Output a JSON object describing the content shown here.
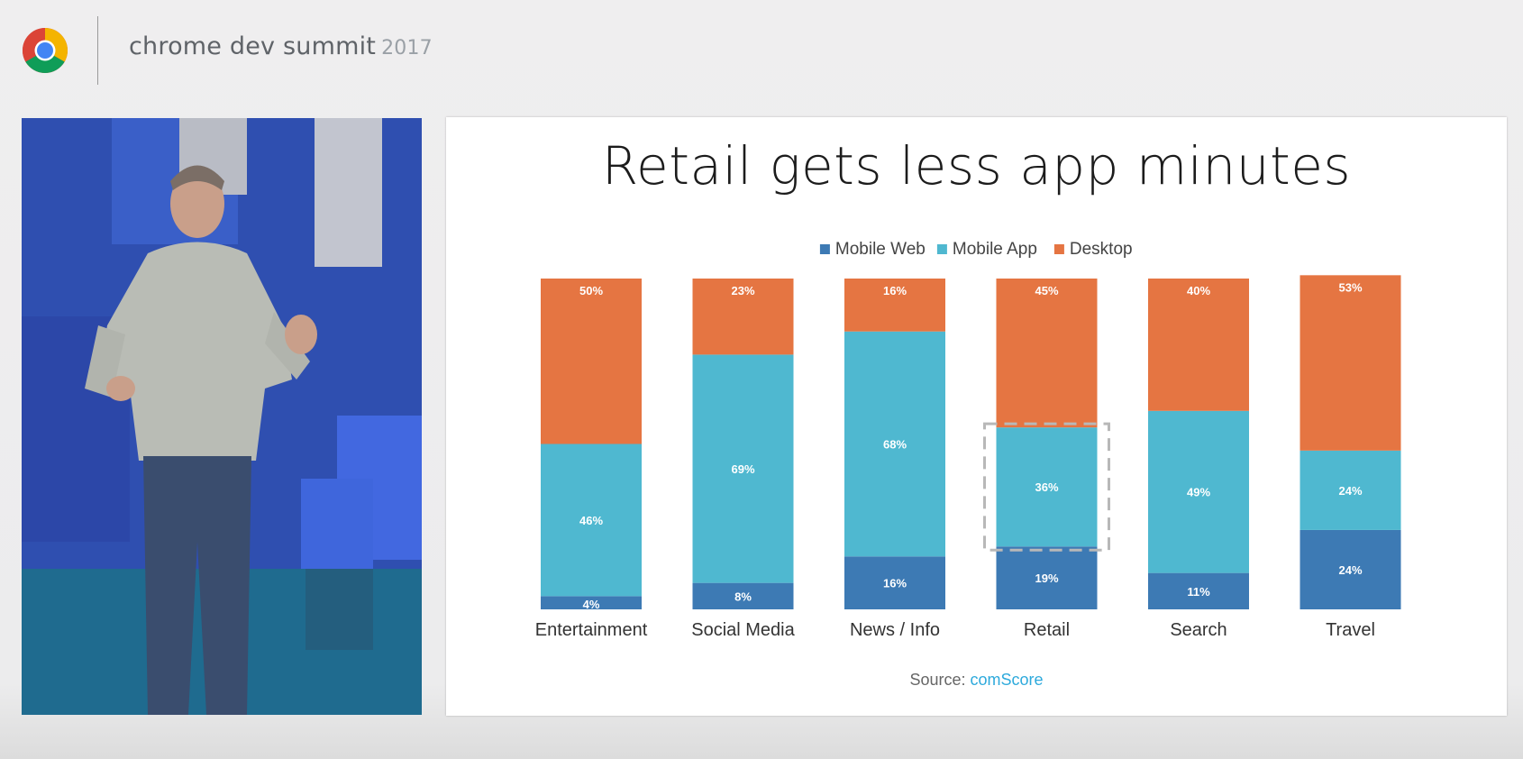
{
  "header": {
    "title": "chrome dev summit",
    "year": "2017",
    "logo_icon": "chrome-logo-icon"
  },
  "video": {
    "description_icon": "speaker-video-icon"
  },
  "slide": {
    "title": "Retail gets less app minutes",
    "source_label": "Source:",
    "source_link": "comScore"
  },
  "colors": {
    "mobile_web": "#3d7ab4",
    "mobile_app": "#4fb8d0",
    "desktop": "#e57542",
    "highlight_box": "#b8b8b8"
  },
  "chart_data": {
    "type": "bar",
    "stacked": true,
    "categories": [
      "Entertainment",
      "Social Media",
      "News / Info",
      "Retail",
      "Search",
      "Travel"
    ],
    "series": [
      {
        "name": "Mobile Web",
        "values": [
          4,
          8,
          16,
          19,
          11,
          24
        ],
        "labels": [
          "4%",
          "8%",
          "16%",
          "19%",
          "11%",
          "24%"
        ]
      },
      {
        "name": "Mobile App",
        "values": [
          46,
          69,
          68,
          36,
          49,
          24
        ],
        "labels": [
          "46%",
          "69%",
          "68%",
          "36%",
          "49%",
          "24%"
        ]
      },
      {
        "name": "Desktop",
        "values": [
          50,
          23,
          16,
          45,
          40,
          53
        ],
        "labels": [
          "50%",
          "23%",
          "16%",
          "45%",
          "40%",
          "53%"
        ]
      }
    ],
    "ylim": [
      0,
      100
    ],
    "legend_position": "top-center",
    "grid": false,
    "highlight": {
      "category": "Retail",
      "series": "Mobile App"
    }
  }
}
